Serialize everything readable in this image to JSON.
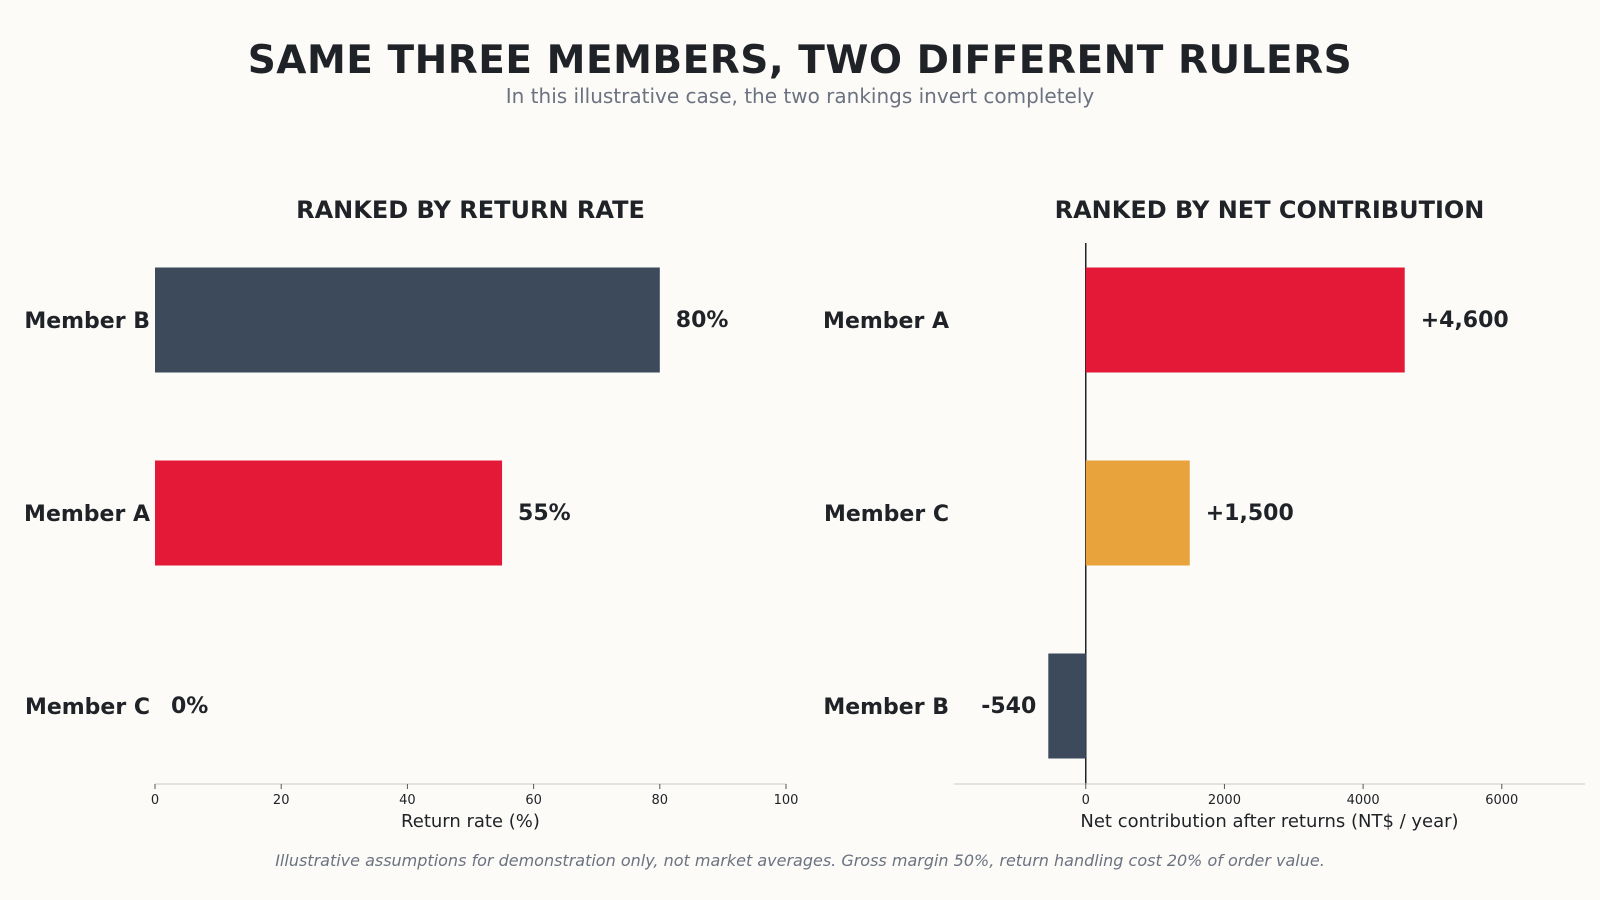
{
  "title": "SAME THREE MEMBERS, TWO DIFFERENT RULERS",
  "subtitle": "In this illustrative case, the two rankings invert completely",
  "footnote": "Illustrative assumptions for demonstration only, not market averages. Gross margin 50%, return handling cost 20% of order value.",
  "colors": {
    "background": "#fcfbf8",
    "member_a": "#e31937",
    "member_b": "#3d4a5c",
    "member_c": "#e8a33d",
    "text": "#1f2227",
    "muted": "#6b7280"
  },
  "chart_data": [
    {
      "type": "bar",
      "orientation": "horizontal",
      "title": "RANKED BY RETURN RATE",
      "xlabel": "Return rate (%)",
      "ylabel": "",
      "xlim": [
        0,
        100
      ],
      "ticks": [
        0,
        20,
        40,
        60,
        80,
        100
      ],
      "tick_labels": [
        "0",
        "20",
        "40",
        "60",
        "80",
        "100"
      ],
      "categories": [
        "Member B",
        "Member A",
        "Member C"
      ],
      "values": [
        80,
        55,
        0
      ],
      "value_labels": [
        "80%",
        "55%",
        "0%"
      ],
      "bar_colors": [
        "#3d4a5c",
        "#e31937",
        "#e8a33d"
      ],
      "grid": false
    },
    {
      "type": "bar",
      "orientation": "horizontal",
      "title": "RANKED BY NET CONTRIBUTION",
      "xlabel": "Net contribution after returns (NT$ / year)",
      "ylabel": "",
      "xlim": [
        -1900,
        7200
      ],
      "ticks": [
        0,
        2000,
        4000,
        6000
      ],
      "tick_labels": [
        "0",
        "2000",
        "4000",
        "6000"
      ],
      "categories": [
        "Member A",
        "Member C",
        "Member B"
      ],
      "values": [
        4600,
        1500,
        -540
      ],
      "value_labels": [
        "+4,600",
        "+1,500",
        "-540"
      ],
      "bar_colors": [
        "#e31937",
        "#e8a33d",
        "#3d4a5c"
      ],
      "zero_line": true,
      "grid": false
    }
  ]
}
